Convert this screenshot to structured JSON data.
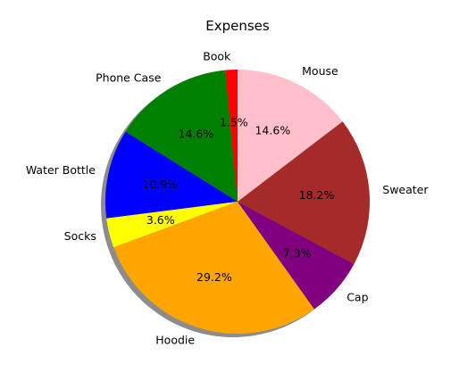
{
  "chart_data": {
    "type": "pie",
    "title": "Expenses",
    "start_angle_deg": 90,
    "direction": "counterclockwise",
    "shadow": true,
    "slices": [
      {
        "label": "Book",
        "percent": 1.5,
        "color": "#ff0000"
      },
      {
        "label": "Phone Case",
        "percent": 14.6,
        "color": "#008000"
      },
      {
        "label": "Water Bottle",
        "percent": 10.9,
        "color": "#0000ff"
      },
      {
        "label": "Socks",
        "percent": 3.6,
        "color": "#ffff00"
      },
      {
        "label": "Hoodie",
        "percent": 29.2,
        "color": "#ffa500"
      },
      {
        "label": "Cap",
        "percent": 7.3,
        "color": "#800080"
      },
      {
        "label": "Sweater",
        "percent": 18.2,
        "color": "#a52a2a"
      },
      {
        "label": "Mouse",
        "percent": 14.6,
        "color": "#ffc0cb"
      }
    ]
  }
}
